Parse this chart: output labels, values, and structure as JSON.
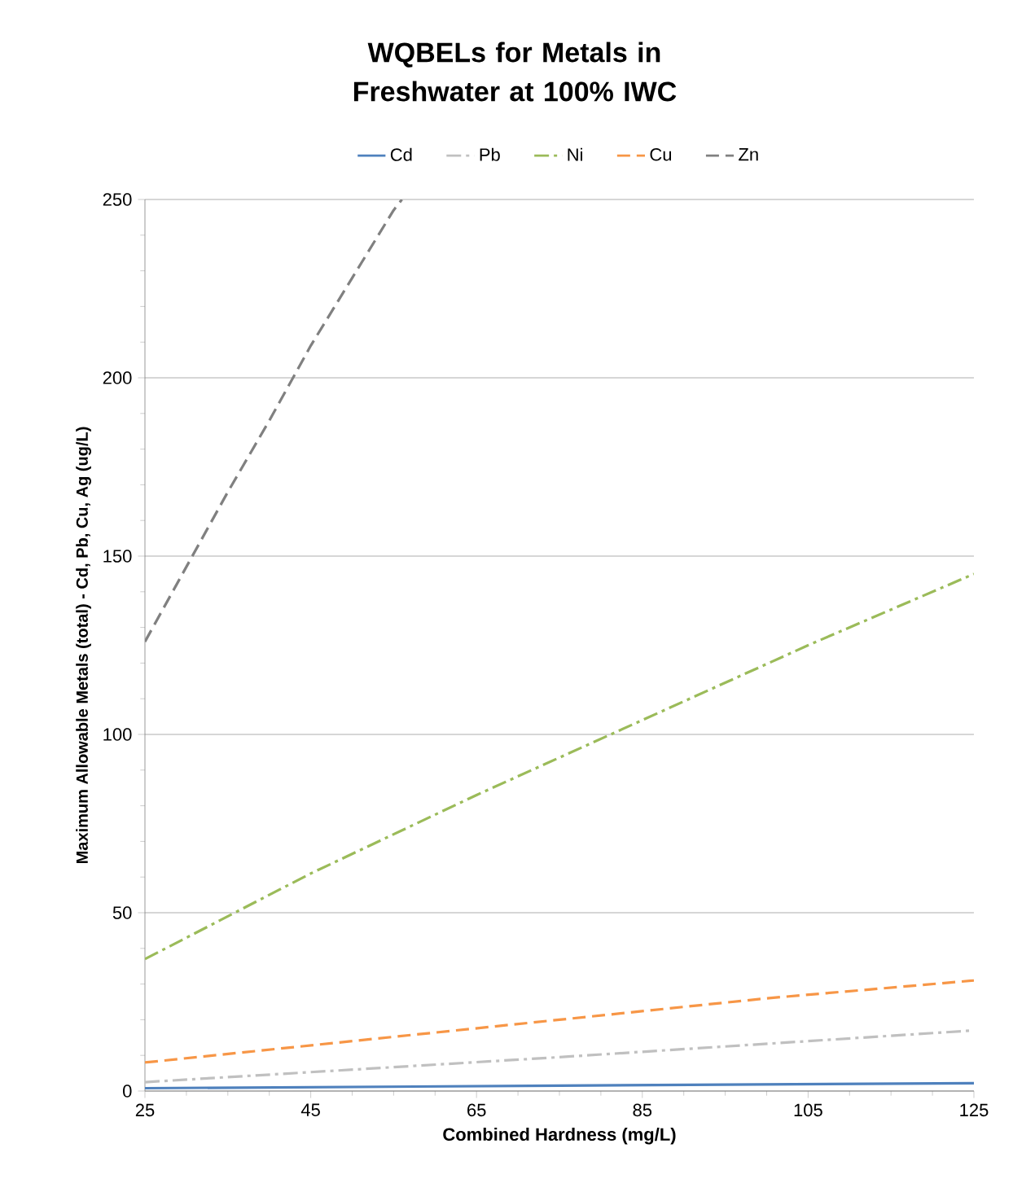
{
  "chart_data": {
    "type": "line",
    "title": "WQBELs for Metals in Freshwater at 100% IWC",
    "xlabel": "Combined Hardness (mg/L)",
    "ylabel": "Maximum Allowable Metals (total) - Cd, Pb, Cu, Ag (ug/L)",
    "xlim": [
      25,
      125
    ],
    "xticks": [
      25,
      45,
      65,
      85,
      105,
      125
    ],
    "ylim": [
      0,
      250
    ],
    "yticks": [
      0,
      50,
      100,
      150,
      200,
      250
    ],
    "grid": "y",
    "legend": "top",
    "series": [
      {
        "name": "Cd",
        "color": "#4f81bd",
        "line_style": "solid",
        "x": [
          25,
          75,
          125
        ],
        "values": [
          0.8,
          1.5,
          2.2
        ]
      },
      {
        "name": "Pb",
        "color": "#c0c0c0",
        "line_style": "dashdot",
        "x": [
          25,
          75,
          125
        ],
        "values": [
          2.5,
          9.5,
          17
        ]
      },
      {
        "name": "Ni",
        "color": "#9bbb59",
        "line_style": "dashdot",
        "x": [
          25,
          45,
          65,
          85,
          105,
          125
        ],
        "values": [
          37,
          61,
          83,
          104,
          125,
          145
        ]
      },
      {
        "name": "Cu",
        "color": "#f79646",
        "line_style": "dashed",
        "x": [
          25,
          50,
          75,
          100,
          125
        ],
        "values": [
          8,
          14,
          20,
          26,
          31
        ]
      },
      {
        "name": "Zn",
        "color": "#808080",
        "line_style": "dashed",
        "x": [
          25,
          30,
          35,
          40,
          45,
          50,
          55,
          56
        ],
        "values": [
          126,
          147,
          168,
          188,
          209,
          228,
          247,
          250
        ]
      }
    ]
  }
}
